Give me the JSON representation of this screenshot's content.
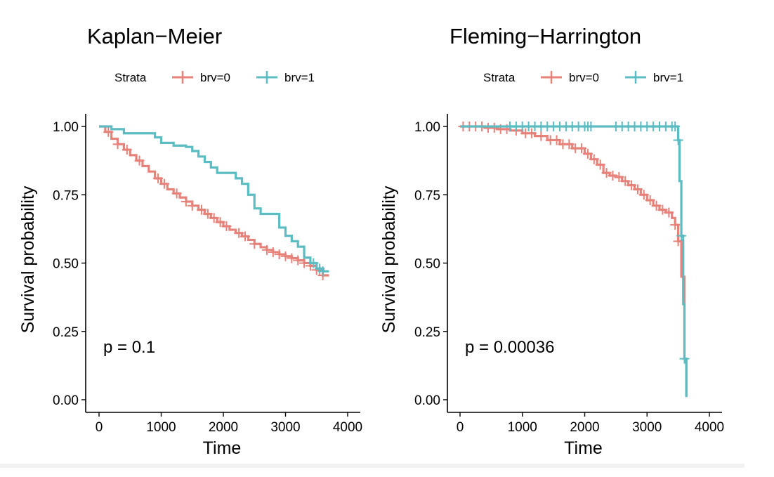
{
  "chart_data": [
    {
      "type": "line",
      "title": "Kaplan−Meier",
      "xlabel": "Time",
      "ylabel": "Survival probability",
      "xlim": [
        0,
        4000
      ],
      "ylim": [
        0,
        1
      ],
      "xticks": [
        "0",
        "1000",
        "2000",
        "3000",
        "4000"
      ],
      "yticks": [
        "0.00",
        "0.25",
        "0.50",
        "0.75",
        "1.00"
      ],
      "legend_title": "Strata",
      "legend_position": "top",
      "annotation": "p = 0.1",
      "series": [
        {
          "name": "brv=0",
          "color": "#E7827A",
          "x": [
            0,
            100,
            200,
            300,
            400,
            500,
            600,
            700,
            800,
            900,
            1000,
            1100,
            1200,
            1300,
            1400,
            1500,
            1600,
            1700,
            1800,
            1900,
            2000,
            2100,
            2200,
            2300,
            2400,
            2500,
            2600,
            2700,
            2800,
            2900,
            3000,
            3100,
            3200,
            3300,
            3400,
            3500,
            3600,
            3700
          ],
          "y": [
            1.0,
            0.98,
            0.955,
            0.935,
            0.915,
            0.895,
            0.875,
            0.855,
            0.835,
            0.81,
            0.79,
            0.77,
            0.755,
            0.74,
            0.725,
            0.71,
            0.695,
            0.68,
            0.665,
            0.65,
            0.635,
            0.622,
            0.61,
            0.598,
            0.585,
            0.57,
            0.558,
            0.548,
            0.54,
            0.532,
            0.525,
            0.518,
            0.51,
            0.5,
            0.49,
            0.475,
            0.455,
            0.455
          ],
          "censor_x": [
            150,
            300,
            450,
            650,
            950,
            1050,
            1250,
            1400,
            1500,
            1650,
            1750,
            1850,
            1950,
            2050,
            2250,
            2350,
            2500,
            2700,
            2800,
            2900,
            3000,
            3100,
            3200,
            3300,
            3400,
            3500,
            3550,
            3600
          ]
        },
        {
          "name": "brv=1",
          "color": "#5BBCC2",
          "x": [
            0,
            200,
            400,
            600,
            800,
            900,
            1000,
            1200,
            1400,
            1500,
            1600,
            1700,
            1800,
            1900,
            2000,
            2100,
            2200,
            2300,
            2400,
            2500,
            2600,
            2700,
            2800,
            2900,
            3000,
            3100,
            3200,
            3300,
            3400,
            3500,
            3600,
            3700
          ],
          "y": [
            1.0,
            0.99,
            0.975,
            0.975,
            0.975,
            0.96,
            0.94,
            0.93,
            0.925,
            0.91,
            0.89,
            0.87,
            0.85,
            0.83,
            0.83,
            0.83,
            0.81,
            0.79,
            0.75,
            0.7,
            0.68,
            0.68,
            0.68,
            0.63,
            0.6,
            0.58,
            0.56,
            0.52,
            0.5,
            0.48,
            0.47,
            0.47
          ],
          "censor_x": [
            3450,
            3550,
            3600
          ]
        }
      ]
    },
    {
      "type": "line",
      "title": "Fleming−Harrington",
      "xlabel": "Time",
      "ylabel": "Survival probability",
      "xlim": [
        0,
        4000
      ],
      "ylim": [
        0,
        1
      ],
      "xticks": [
        "0",
        "1000",
        "2000",
        "3000",
        "4000"
      ],
      "yticks": [
        "0.00",
        "0.25",
        "0.50",
        "0.75",
        "1.00"
      ],
      "legend_title": "Strata",
      "legend_position": "top",
      "annotation": "p = 0.00036",
      "series": [
        {
          "name": "brv=0",
          "color": "#E7827A",
          "x": [
            0,
            200,
            400,
            600,
            800,
            1000,
            1200,
            1400,
            1600,
            1800,
            2000,
            2100,
            2200,
            2300,
            2400,
            2500,
            2600,
            2700,
            2800,
            2900,
            3000,
            3100,
            3200,
            3300,
            3400,
            3450,
            3500,
            3550,
            3600,
            3630
          ],
          "y": [
            1.0,
            1.0,
            0.995,
            0.99,
            0.985,
            0.975,
            0.965,
            0.95,
            0.935,
            0.92,
            0.9,
            0.88,
            0.86,
            0.83,
            0.82,
            0.815,
            0.8,
            0.785,
            0.77,
            0.75,
            0.73,
            0.71,
            0.695,
            0.685,
            0.665,
            0.64,
            0.58,
            0.45,
            0.15,
            0.01
          ],
          "censor_x": [
            50,
            150,
            250,
            350,
            450,
            550,
            650,
            750,
            900,
            1050,
            1150,
            1300,
            1450,
            1550,
            1650,
            1750,
            1850,
            1950,
            2050,
            2150,
            2250,
            2350,
            2450,
            2550,
            2650,
            2750,
            2850,
            2950,
            3050,
            3150,
            3250,
            3350,
            3450,
            3500
          ]
        },
        {
          "name": "brv=1",
          "color": "#5BBCC2",
          "x": [
            0,
            800,
            1200,
            1600,
            2000,
            2400,
            2800,
            3200,
            3400,
            3480,
            3500,
            3520,
            3550,
            3580,
            3600,
            3630
          ],
          "y": [
            1.0,
            1.0,
            1.0,
            1.0,
            1.0,
            1.0,
            1.0,
            1.0,
            1.0,
            1.0,
            0.95,
            0.8,
            0.6,
            0.35,
            0.15,
            0.01
          ],
          "censor_x": [
            800,
            900,
            1000,
            1100,
            1200,
            1300,
            1400,
            1500,
            1600,
            1700,
            1800,
            1900,
            2000,
            2050,
            2100,
            2500,
            2600,
            2700,
            2800,
            2900,
            3000,
            3100,
            3200,
            3300,
            3400,
            3450,
            3500,
            3550,
            3600
          ]
        }
      ]
    }
  ]
}
